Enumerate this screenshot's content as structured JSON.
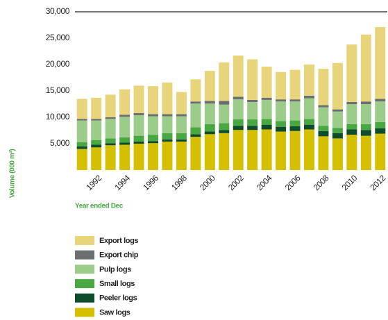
{
  "chart_data": {
    "type": "bar",
    "stacked": true,
    "y_label": "Volume (000 m³)",
    "x_label": "Year ended Dec",
    "categories": [
      null,
      "1992",
      null,
      "1994",
      null,
      "1996",
      null,
      "1998",
      null,
      "2000",
      null,
      "2002",
      null,
      "2004",
      null,
      "2006",
      null,
      "2008",
      null,
      "2010",
      null,
      "2012"
    ],
    "ylim": [
      0,
      30000
    ],
    "yticks": [
      {
        "value": 5000,
        "label": "5,000"
      },
      {
        "value": 10000,
        "label": "10,000"
      },
      {
        "value": 15000,
        "label": "15,000"
      },
      {
        "value": 20000,
        "label": "20,000"
      },
      {
        "value": 25000,
        "label": "25,000"
      },
      {
        "value": 30000,
        "label": "30,000"
      }
    ],
    "series": [
      {
        "name": "Saw logs",
        "color": "#d4bf00",
        "values": [
          4000,
          4300,
          4700,
          4800,
          5000,
          5100,
          5400,
          5400,
          6300,
          6800,
          7000,
          7600,
          7600,
          7700,
          7300,
          7400,
          7700,
          6400,
          6000,
          6700,
          6500,
          6900
        ]
      },
      {
        "name": "Peeler logs",
        "color": "#0e4d2c",
        "values": [
          500,
          500,
          400,
          400,
          400,
          400,
          400,
          400,
          500,
          500,
          600,
          800,
          800,
          900,
          900,
          900,
          900,
          1000,
          1000,
          1000,
          1100,
          1000
        ]
      },
      {
        "name": "Small logs",
        "color": "#4aa843",
        "values": [
          800,
          900,
          900,
          1000,
          1100,
          1200,
          1200,
          1200,
          1300,
          1400,
          1300,
          1200,
          1200,
          1100,
          1100,
          1100,
          1100,
          1000,
          1000,
          1000,
          1100,
          1200
        ]
      },
      {
        "name": "Pulp logs",
        "color": "#9ccc8a",
        "values": [
          4100,
          3700,
          3700,
          3900,
          3900,
          3500,
          3200,
          3200,
          4500,
          3900,
          3500,
          3800,
          3300,
          3600,
          3700,
          3600,
          3900,
          3500,
          3100,
          3800,
          3800,
          3900
        ]
      },
      {
        "name": "Export chip",
        "color": "#6d6e70",
        "values": [
          300,
          300,
          300,
          400,
          400,
          400,
          400,
          400,
          400,
          500,
          700,
          500,
          400,
          400,
          400,
          400,
          500,
          400,
          400,
          400,
          500,
          500
        ]
      },
      {
        "name": "Export logs",
        "color": "#e8d47a",
        "values": [
          3800,
          4000,
          4300,
          4800,
          5200,
          5300,
          6000,
          4200,
          4200,
          5700,
          7300,
          7800,
          7700,
          5900,
          5200,
          5600,
          5900,
          6900,
          8800,
          10900,
          12700,
          13600
        ]
      }
    ]
  }
}
